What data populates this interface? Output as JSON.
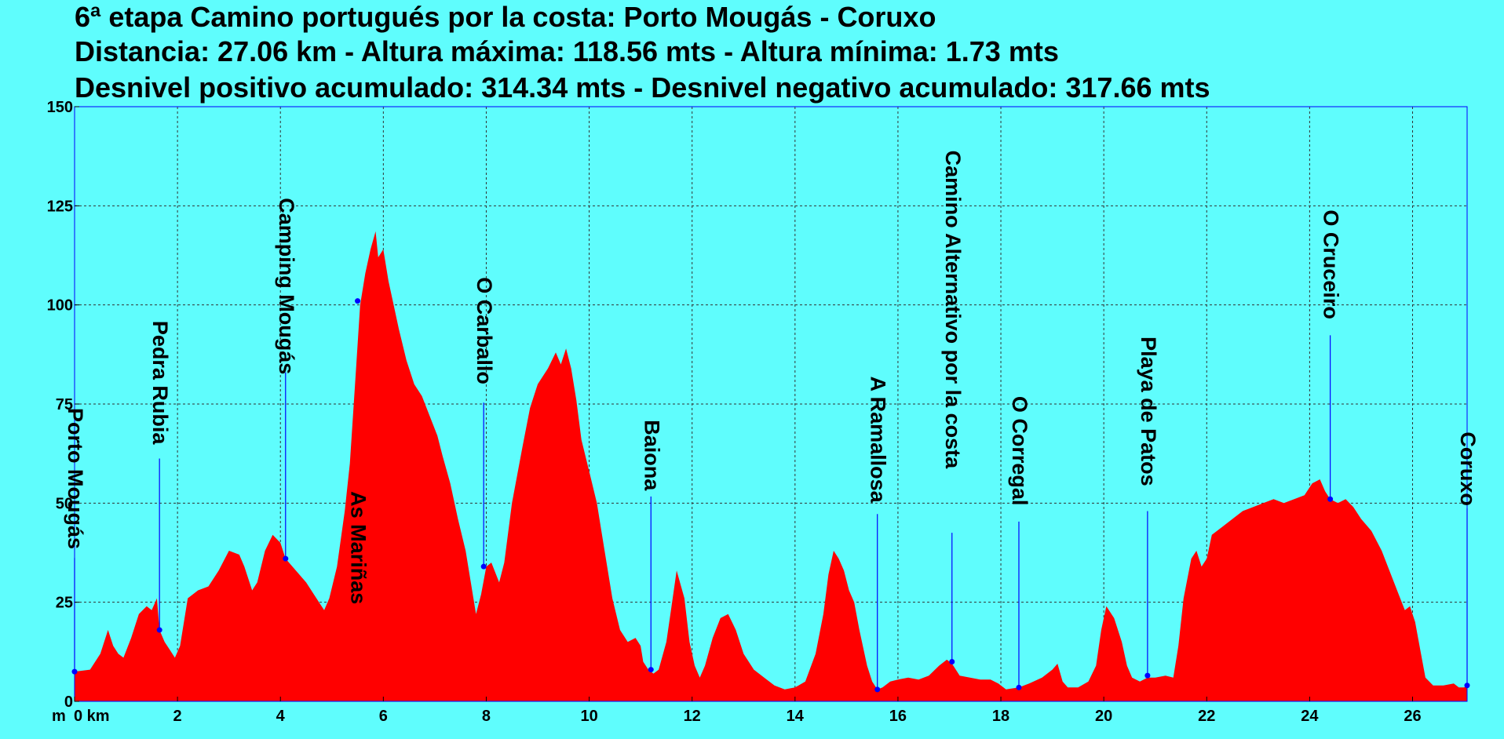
{
  "chart_data": {
    "type": "area",
    "title_lines": [
      "6ª etapa Camino portugués por la costa: Porto Mougás - Coruxo",
      "Distancia: 27.06 km - Altura máxima: 118.56 mts - Altura mínima: 1.73 mts",
      "Desnivel positivo acumulado: 314.34 mts - Desnivel negativo acumulado: 317.66 mts"
    ],
    "y_unit_label": "m",
    "x_unit_label": "0 km",
    "xlim": [
      0,
      27.06
    ],
    "ylim": [
      0,
      150
    ],
    "x_ticks": [
      0,
      2,
      4,
      6,
      8,
      10,
      12,
      14,
      16,
      18,
      20,
      22,
      24,
      26
    ],
    "x_tick_labels": [
      "2",
      "4",
      "6",
      "8",
      "10",
      "12",
      "14",
      "16",
      "18",
      "20",
      "22",
      "24",
      "26"
    ],
    "y_ticks": [
      0,
      25,
      50,
      75,
      100,
      125,
      150
    ],
    "y_tick_labels": [
      "0",
      "25",
      "50",
      "75",
      "100",
      "125",
      "150"
    ],
    "grid": true,
    "colors": {
      "fill": "#ff0000",
      "background": "#5ffdfd",
      "marker": "#0000ff",
      "grid": "#333333"
    },
    "profile": [
      [
        0,
        7.5
      ],
      [
        0.3,
        8
      ],
      [
        0.5,
        12
      ],
      [
        0.65,
        18
      ],
      [
        0.75,
        14
      ],
      [
        0.85,
        12
      ],
      [
        0.95,
        11
      ],
      [
        1.1,
        16
      ],
      [
        1.25,
        22
      ],
      [
        1.4,
        24
      ],
      [
        1.5,
        23
      ],
      [
        1.6,
        26
      ],
      [
        1.65,
        18
      ],
      [
        1.75,
        15
      ],
      [
        1.85,
        13
      ],
      [
        1.95,
        11
      ],
      [
        2.05,
        14
      ],
      [
        2.2,
        26
      ],
      [
        2.4,
        28
      ],
      [
        2.6,
        29
      ],
      [
        2.8,
        33
      ],
      [
        3.0,
        38
      ],
      [
        3.2,
        37
      ],
      [
        3.3,
        34
      ],
      [
        3.45,
        28
      ],
      [
        3.55,
        30
      ],
      [
        3.7,
        38
      ],
      [
        3.85,
        42
      ],
      [
        4.0,
        40
      ],
      [
        4.1,
        36
      ],
      [
        4.3,
        33
      ],
      [
        4.5,
        30
      ],
      [
        4.7,
        26
      ],
      [
        4.8,
        24
      ],
      [
        4.85,
        23
      ],
      [
        4.95,
        26
      ],
      [
        5.1,
        34
      ],
      [
        5.25,
        48
      ],
      [
        5.35,
        60
      ],
      [
        5.45,
        80
      ],
      [
        5.55,
        100
      ],
      [
        5.65,
        108
      ],
      [
        5.75,
        114
      ],
      [
        5.85,
        118.56
      ],
      [
        5.9,
        112
      ],
      [
        6.0,
        114
      ],
      [
        6.1,
        106
      ],
      [
        6.2,
        100
      ],
      [
        6.3,
        94
      ],
      [
        6.45,
        86
      ],
      [
        6.6,
        80
      ],
      [
        6.75,
        77
      ],
      [
        6.9,
        72
      ],
      [
        7.05,
        67
      ],
      [
        7.15,
        62
      ],
      [
        7.3,
        55
      ],
      [
        7.45,
        46
      ],
      [
        7.6,
        38
      ],
      [
        7.7,
        30
      ],
      [
        7.8,
        22
      ],
      [
        7.9,
        27
      ],
      [
        8.0,
        34
      ],
      [
        8.1,
        35
      ],
      [
        8.25,
        30
      ],
      [
        8.35,
        35
      ],
      [
        8.5,
        50
      ],
      [
        8.7,
        64
      ],
      [
        8.85,
        74
      ],
      [
        9.0,
        80
      ],
      [
        9.2,
        84
      ],
      [
        9.35,
        88
      ],
      [
        9.45,
        85
      ],
      [
        9.55,
        89
      ],
      [
        9.65,
        84
      ],
      [
        9.75,
        76
      ],
      [
        9.85,
        66
      ],
      [
        10.0,
        58
      ],
      [
        10.15,
        50
      ],
      [
        10.3,
        38
      ],
      [
        10.45,
        26
      ],
      [
        10.6,
        18
      ],
      [
        10.75,
        15
      ],
      [
        10.9,
        16
      ],
      [
        11.0,
        14
      ],
      [
        11.05,
        10
      ],
      [
        11.15,
        8
      ],
      [
        11.25,
        7
      ],
      [
        11.35,
        8
      ],
      [
        11.5,
        15
      ],
      [
        11.6,
        24
      ],
      [
        11.7,
        33
      ],
      [
        11.85,
        26
      ],
      [
        11.95,
        15
      ],
      [
        12.05,
        9
      ],
      [
        12.15,
        6
      ],
      [
        12.25,
        9
      ],
      [
        12.4,
        16
      ],
      [
        12.55,
        21
      ],
      [
        12.7,
        22
      ],
      [
        12.85,
        18
      ],
      [
        13.0,
        12
      ],
      [
        13.2,
        8
      ],
      [
        13.4,
        6
      ],
      [
        13.6,
        4
      ],
      [
        13.8,
        3
      ],
      [
        14.0,
        3.5
      ],
      [
        14.2,
        5
      ],
      [
        14.4,
        12
      ],
      [
        14.55,
        22
      ],
      [
        14.65,
        32
      ],
      [
        14.75,
        38
      ],
      [
        14.85,
        36
      ],
      [
        14.95,
        33
      ],
      [
        15.05,
        28
      ],
      [
        15.15,
        25
      ],
      [
        15.25,
        18
      ],
      [
        15.4,
        9
      ],
      [
        15.5,
        5
      ],
      [
        15.6,
        3
      ],
      [
        15.7,
        3.5
      ],
      [
        15.85,
        5
      ],
      [
        16.0,
        5.5
      ],
      [
        16.2,
        6
      ],
      [
        16.4,
        5.5
      ],
      [
        16.6,
        6.5
      ],
      [
        16.8,
        9
      ],
      [
        16.95,
        10.5
      ],
      [
        17.05,
        9.5
      ],
      [
        17.2,
        6.5
      ],
      [
        17.4,
        6
      ],
      [
        17.6,
        5.5
      ],
      [
        17.8,
        5.5
      ],
      [
        17.95,
        4.5
      ],
      [
        18.1,
        3
      ],
      [
        18.35,
        3.5
      ],
      [
        18.55,
        4.5
      ],
      [
        18.8,
        6
      ],
      [
        19.0,
        8
      ],
      [
        19.1,
        9.5
      ],
      [
        19.2,
        5
      ],
      [
        19.3,
        3.5
      ],
      [
        19.5,
        3.5
      ],
      [
        19.7,
        5
      ],
      [
        19.85,
        9
      ],
      [
        19.95,
        18
      ],
      [
        20.05,
        24
      ],
      [
        20.2,
        21
      ],
      [
        20.35,
        15
      ],
      [
        20.45,
        9
      ],
      [
        20.55,
        6
      ],
      [
        20.7,
        5
      ],
      [
        20.85,
        6
      ],
      [
        21.0,
        6
      ],
      [
        21.2,
        6.5
      ],
      [
        21.35,
        6
      ],
      [
        21.45,
        14
      ],
      [
        21.55,
        26
      ],
      [
        21.7,
        36
      ],
      [
        21.8,
        38
      ],
      [
        21.9,
        34
      ],
      [
        22.0,
        36
      ],
      [
        22.1,
        42
      ],
      [
        22.3,
        44
      ],
      [
        22.5,
        46
      ],
      [
        22.7,
        48
      ],
      [
        22.9,
        49
      ],
      [
        23.1,
        50
      ],
      [
        23.3,
        51
      ],
      [
        23.5,
        50
      ],
      [
        23.7,
        51
      ],
      [
        23.9,
        52
      ],
      [
        24.05,
        55
      ],
      [
        24.2,
        56
      ],
      [
        24.3,
        53
      ],
      [
        24.4,
        51
      ],
      [
        24.55,
        50
      ],
      [
        24.7,
        51
      ],
      [
        24.85,
        49
      ],
      [
        25.0,
        46
      ],
      [
        25.2,
        43
      ],
      [
        25.4,
        38
      ],
      [
        25.55,
        33
      ],
      [
        25.7,
        28
      ],
      [
        25.85,
        23
      ],
      [
        25.95,
        24
      ],
      [
        26.05,
        20
      ],
      [
        26.15,
        13
      ],
      [
        26.25,
        6
      ],
      [
        26.4,
        4
      ],
      [
        26.6,
        4
      ],
      [
        26.8,
        4.5
      ],
      [
        26.9,
        3.5
      ],
      [
        27.0,
        3.5
      ],
      [
        27.06,
        4
      ]
    ],
    "waypoints": [
      {
        "label": "Porto Mougás",
        "km": 0.0,
        "alt": 7.5,
        "text_top": 74.0,
        "text_anchor": "start"
      },
      {
        "label": "Pedra Rubia",
        "km": 1.65,
        "alt": 18.0,
        "text_top": 96.0,
        "text_anchor": "start"
      },
      {
        "label": "Camping Mougás",
        "km": 4.1,
        "alt": 36.0,
        "text_top": 127.0,
        "text_anchor": "start"
      },
      {
        "label": "As Mariñas",
        "km": 5.5,
        "alt": 101.0,
        "text_top": 53.0,
        "text_anchor": "start"
      },
      {
        "label": "O Carballo",
        "km": 7.95,
        "alt": 34.0,
        "text_top": 107.0,
        "text_anchor": "start"
      },
      {
        "label": "Baiona",
        "km": 11.2,
        "alt": 8.0,
        "text_top": 71.0,
        "text_anchor": "start"
      },
      {
        "label": "A Ramallosa",
        "km": 15.6,
        "alt": 3.0,
        "text_top": 82.0,
        "text_anchor": "start"
      },
      {
        "label": "Camino Alternativo por la costa",
        "km": 17.05,
        "alt": 10.0,
        "text_top": 139.0,
        "text_anchor": "start"
      },
      {
        "label": "O Corregal",
        "km": 18.35,
        "alt": 3.5,
        "text_top": 77.0,
        "text_anchor": "start"
      },
      {
        "label": "Playa de Patos",
        "km": 20.85,
        "alt": 6.5,
        "text_top": 92.0,
        "text_anchor": "start"
      },
      {
        "label": "O Cruceiro",
        "km": 24.4,
        "alt": 51.0,
        "text_top": 124.0,
        "text_anchor": "start"
      },
      {
        "label": "Coruxo",
        "km": 27.06,
        "alt": 4.0,
        "text_top": 68.0,
        "text_anchor": "start"
      }
    ]
  }
}
